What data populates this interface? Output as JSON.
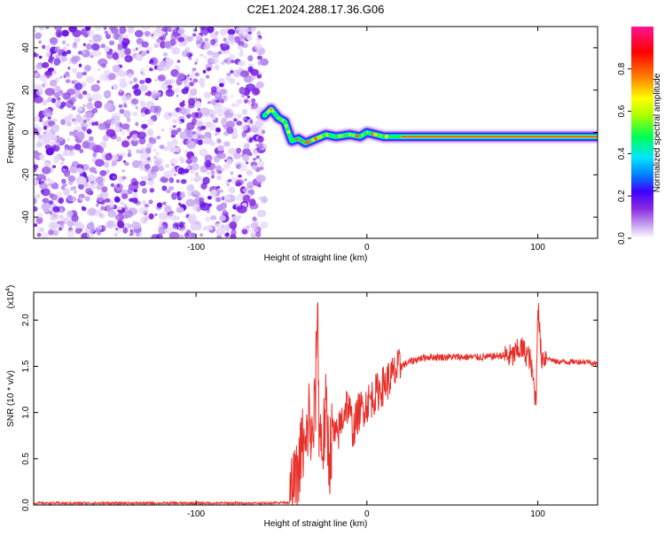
{
  "title": "C2E1.2024.288.17.36.G06",
  "chart_data": [
    {
      "type": "heatmap",
      "title": "C2E1.2024.288.17.36.G06",
      "xlabel": "Height of straight line (km)",
      "ylabel": "Frequency (Hz)",
      "xlim": [
        -195,
        135
      ],
      "ylim": [
        -50,
        50
      ],
      "x_ticks": [
        -100,
        0,
        100
      ],
      "y_ticks": [
        -40,
        -20,
        0,
        20,
        40
      ],
      "noise_region_x": [
        -195,
        -60
      ],
      "signal_track": [
        {
          "x": -60,
          "y": 8
        },
        {
          "x": -56,
          "y": 11
        },
        {
          "x": -52,
          "y": 7
        },
        {
          "x": -48,
          "y": 5
        },
        {
          "x": -44,
          "y": -4
        },
        {
          "x": -40,
          "y": -3
        },
        {
          "x": -36,
          "y": -5
        },
        {
          "x": -30,
          "y": -3
        },
        {
          "x": -24,
          "y": -1
        },
        {
          "x": -18,
          "y": -2
        },
        {
          "x": -10,
          "y": -1
        },
        {
          "x": -4,
          "y": -2
        },
        {
          "x": 0,
          "y": 0
        },
        {
          "x": 10,
          "y": -2
        },
        {
          "x": 20,
          "y": -2
        },
        {
          "x": 60,
          "y": -2
        },
        {
          "x": 100,
          "y": -2
        },
        {
          "x": 135,
          "y": -2
        }
      ],
      "colorbar": {
        "label": "Normalized spectral amplitude",
        "range": [
          0,
          1
        ],
        "ticks": [
          0.0,
          0.2,
          0.4,
          0.6,
          0.8
        ],
        "colormap": [
          "#ffffff",
          "#8a2be2",
          "#3f00ff",
          "#0080ff",
          "#00e5ff",
          "#00ff55",
          "#aaff00",
          "#ffff00",
          "#ff8000",
          "#ff0000",
          "#ff1493"
        ]
      }
    },
    {
      "type": "line",
      "xlabel": "Height of straight line (km)",
      "ylabel": "SNR (10 * v/v)",
      "y_multiplier": "(x10",
      "y_multiplier_exp": "4",
      "xlim": [
        -195,
        135
      ],
      "ylim": [
        0,
        2.3
      ],
      "x_ticks": [
        -100,
        0,
        100
      ],
      "y_ticks": [
        0.0,
        0.5,
        1.0,
        1.5,
        2.0
      ],
      "line_color": "#e8302a",
      "x": [
        -195,
        -150,
        -100,
        -60,
        -45,
        -40,
        -38,
        -36,
        -34,
        -32,
        -30,
        -29,
        -28,
        -26,
        -24,
        -22,
        -20,
        -18,
        -15,
        -12,
        -10,
        -8,
        -5,
        0,
        5,
        10,
        15,
        20,
        25,
        30,
        35,
        40,
        50,
        60,
        70,
        80,
        85,
        90,
        95,
        97,
        99,
        100,
        102,
        105,
        110,
        120,
        130,
        135
      ],
      "y": [
        0.02,
        0.02,
        0.02,
        0.02,
        0.03,
        0.3,
        0.7,
        0.5,
        1.0,
        0.6,
        1.2,
        2.3,
        0.9,
        0.6,
        1.0,
        0.5,
        0.8,
        0.7,
        0.9,
        1.1,
        1.0,
        0.8,
        1.0,
        1.1,
        1.2,
        1.3,
        1.4,
        1.5,
        1.55,
        1.58,
        1.6,
        1.6,
        1.6,
        1.6,
        1.6,
        1.62,
        1.6,
        1.7,
        1.6,
        1.4,
        1.1,
        2.2,
        1.6,
        1.6,
        1.55,
        1.55,
        1.55,
        1.52
      ]
    }
  ]
}
